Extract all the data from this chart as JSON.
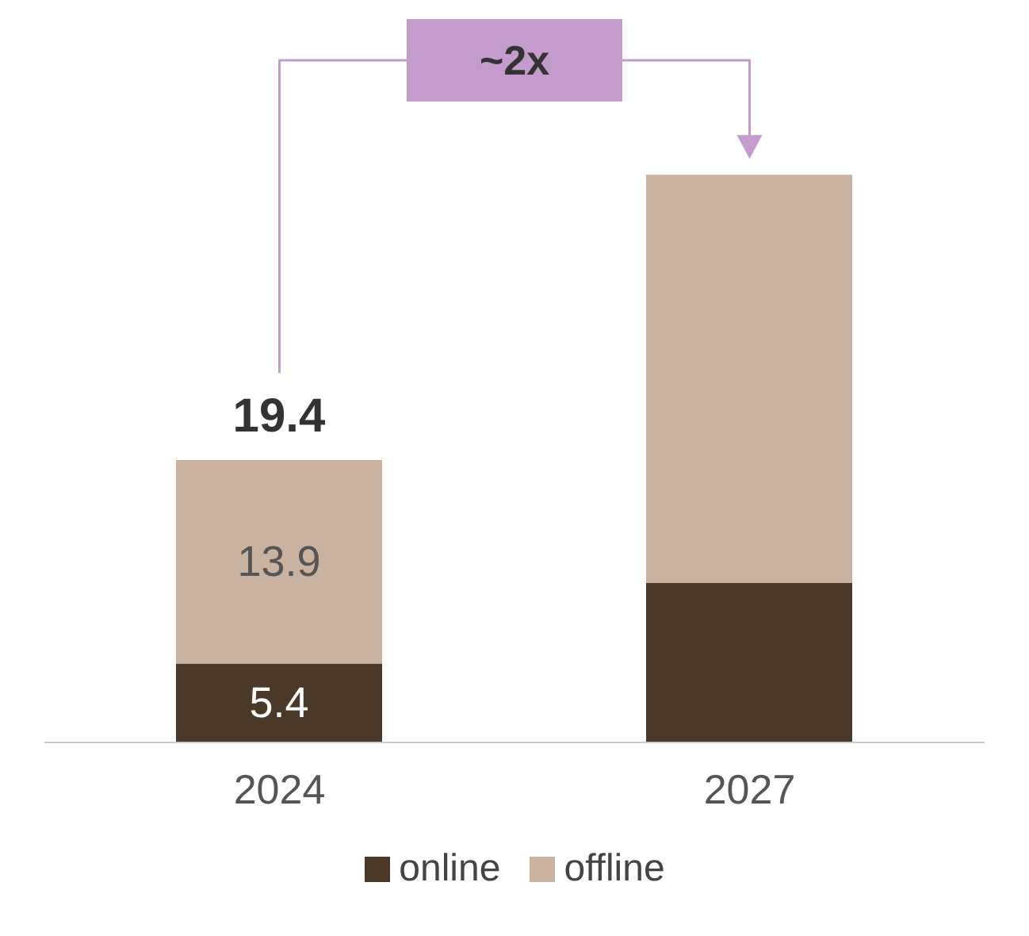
{
  "chart_data": {
    "type": "bar",
    "stacked": true,
    "categories": [
      "2024",
      "2027"
    ],
    "series": [
      {
        "name": "online",
        "color": "#4a3828",
        "values": [
          5.4,
          10.9
        ],
        "value_labels": [
          "5.4",
          null
        ]
      },
      {
        "name": "offline",
        "color": "#c9b29f",
        "values": [
          13.9,
          27.9
        ],
        "value_labels": [
          "13.9",
          null
        ]
      }
    ],
    "totals": [
      "19.4",
      null
    ],
    "annotations": [
      "~2x"
    ],
    "legend": "bottom"
  }
}
